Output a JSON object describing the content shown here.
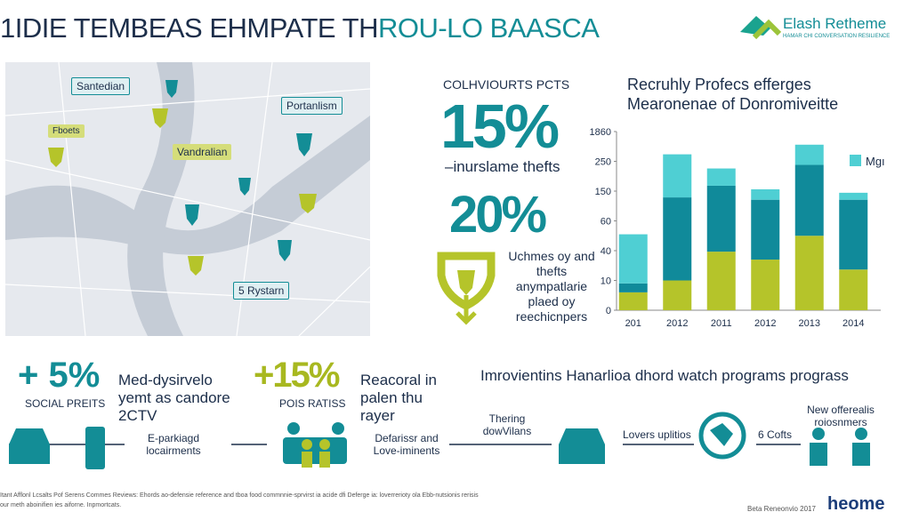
{
  "header": {
    "title_dark": "1IDIE TEMBEAS EHMPATE TH",
    "title_teal": "ROU-LO BAASCA",
    "logo": "Elash Retheme",
    "logo_sub": "HAMAR CHI CONVERSATION RESILIENCE"
  },
  "map": {
    "labels": [
      "Santedian",
      "Portanlism",
      "Fboets",
      "Vandralian",
      "5 Rystarn"
    ]
  },
  "stats": {
    "heading": "COLHVIOURTS PCTS",
    "first": "15%",
    "first_label": "–inurslame thefts",
    "second": "20%",
    "second_label": "Uchmes oy and thefts anympatlarie plaed oy reechicnpers"
  },
  "chart": {
    "type": "bar",
    "stacked": true,
    "title": "Recruhly Profecs efferges Mearonenae of Donromiveitte",
    "categories": [
      "201",
      "2012",
      "2011",
      "2012",
      "2013",
      "2014"
    ],
    "series": [
      {
        "name": null,
        "color": "#b5c42a",
        "values": [
          6,
          10,
          39,
          31,
          50,
          21
        ]
      },
      {
        "name": null,
        "color": "#108a9a",
        "values": [
          3,
          121,
          129,
          93,
          188,
          103
        ]
      },
      {
        "name": "Mgı",
        "color": "#4fcfd3",
        "values": [
          42,
          498,
          58,
          32,
          912,
          21
        ]
      }
    ],
    "ylim": [
      0,
      1860
    ],
    "yticks": [
      0,
      10,
      40,
      60,
      150,
      250,
      1860
    ]
  },
  "bottom": {
    "a_pct": "+ 5%",
    "a_label": "SOCIAL PREITS",
    "a_text": "Med-dysirvelo yemt as candore 2CTV",
    "b_pct": "+15%",
    "b_label": "POIS RATISS",
    "b_text": "Reacoral in palen thu rayer",
    "c_title": "Imrovientins Hanarlioa dhord watch programs prograss",
    "steps": [
      "E-parkiagd locairments",
      "Defarissr and Love-iminents",
      "Thering dowVilans",
      "Lovers uplitios",
      "6 Cofts",
      "New offerealis roiosnmers"
    ]
  },
  "footer": {
    "note": "Itant Afflonl Lcsalts Pof Serens Commes Reviews: Ehords ao-defensie reference and tboa food commnnie-sprvirst ia acide dfi Deferge ia: loverrerioty ola Ebb-nutsionis rerisis our meth aboinifien ies aiforne. Inpmortcats.",
    "date": "Beta Reneonvio 2017",
    "brand": "heome"
  }
}
